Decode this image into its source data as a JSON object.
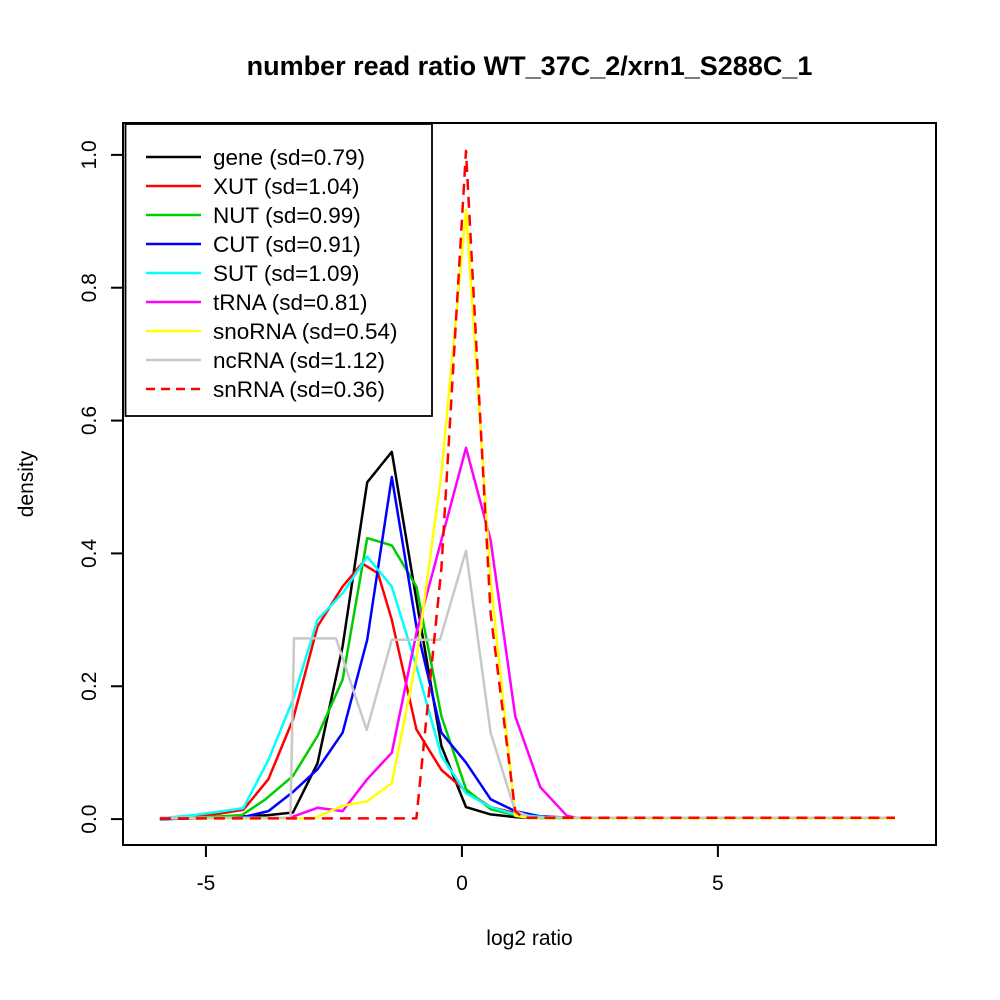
{
  "chart_data": {
    "type": "line",
    "title": "number read ratio WT_37C_2/xrn1_S288C_1",
    "xlabel": "log2 ratio",
    "ylabel": "density",
    "xlim": [
      -6.62,
      9.26
    ],
    "ylim": [
      -0.039,
      1.048
    ],
    "x_ticks": [
      {
        "value": -5,
        "label": "-5"
      },
      {
        "value": 0,
        "label": "0"
      },
      {
        "value": 5,
        "label": "5"
      }
    ],
    "y_ticks": [
      {
        "value": 0.0,
        "label": "0.0"
      },
      {
        "value": 0.2,
        "label": "0.2"
      },
      {
        "value": 0.4,
        "label": "0.4"
      },
      {
        "value": 0.6,
        "label": "0.6"
      },
      {
        "value": 0.8,
        "label": "0.8"
      },
      {
        "value": 1.0,
        "label": "1.0"
      }
    ],
    "grid": false,
    "legend_position": "top-left",
    "axis_color": "#000000",
    "series": [
      {
        "name": "gene",
        "label": "gene (sd=0.79)",
        "color": "#000000",
        "dash": null,
        "points": [
          [
            -5.9,
            0
          ],
          [
            -4.75,
            0.002
          ],
          [
            -4.27,
            0.004
          ],
          [
            -3.78,
            0.006
          ],
          [
            -3.3,
            0.01
          ],
          [
            -2.82,
            0.084
          ],
          [
            -2.33,
            0.26
          ],
          [
            -1.85,
            0.507
          ],
          [
            -1.37,
            0.553
          ],
          [
            -0.89,
            0.33
          ],
          [
            -0.4,
            0.11
          ],
          [
            0.08,
            0.018
          ],
          [
            0.56,
            0.007
          ],
          [
            1.04,
            0.003
          ],
          [
            1.53,
            0.001
          ],
          [
            2.0,
            0.001
          ]
        ]
      },
      {
        "name": "XUT",
        "label": "XUT (sd=1.04)",
        "color": "#ff0000",
        "dash": null,
        "points": [
          [
            -5.9,
            0.001
          ],
          [
            -5.25,
            0.003
          ],
          [
            -4.75,
            0.008
          ],
          [
            -4.27,
            0.014
          ],
          [
            -3.78,
            0.06
          ],
          [
            -3.3,
            0.15
          ],
          [
            -2.82,
            0.29
          ],
          [
            -2.33,
            0.35
          ],
          [
            -1.95,
            0.385
          ],
          [
            -1.64,
            0.37
          ],
          [
            -1.37,
            0.3
          ],
          [
            -0.89,
            0.135
          ],
          [
            -0.4,
            0.074
          ],
          [
            0.08,
            0.042
          ],
          [
            0.56,
            0.018
          ],
          [
            1.04,
            0.009
          ],
          [
            1.53,
            0.004
          ],
          [
            2.5,
            0.001
          ]
        ]
      },
      {
        "name": "NUT",
        "label": "NUT (sd=0.99)",
        "color": "#00cd00",
        "dash": null,
        "points": [
          [
            -5.9,
            0
          ],
          [
            -5.2,
            0.002
          ],
          [
            -4.3,
            0.006
          ],
          [
            -3.85,
            0.029
          ],
          [
            -3.3,
            0.065
          ],
          [
            -2.82,
            0.125
          ],
          [
            -2.33,
            0.21
          ],
          [
            -1.85,
            0.423
          ],
          [
            -1.37,
            0.412
          ],
          [
            -0.89,
            0.35
          ],
          [
            -0.4,
            0.155
          ],
          [
            0.08,
            0.045
          ],
          [
            0.56,
            0.015
          ],
          [
            1.04,
            0.006
          ],
          [
            1.6,
            0.003
          ],
          [
            2.76,
            0.001
          ]
        ]
      },
      {
        "name": "CUT",
        "label": "CUT (sd=0.91)",
        "color": "#0000ff",
        "dash": null,
        "points": [
          [
            -5.9,
            0
          ],
          [
            -4.5,
            0.002
          ],
          [
            -4.27,
            0.003
          ],
          [
            -3.78,
            0.012
          ],
          [
            -3.3,
            0.041
          ],
          [
            -2.82,
            0.075
          ],
          [
            -2.33,
            0.13
          ],
          [
            -1.85,
            0.27
          ],
          [
            -1.37,
            0.515
          ],
          [
            -0.89,
            0.29
          ],
          [
            -0.4,
            0.13
          ],
          [
            0.08,
            0.085
          ],
          [
            0.56,
            0.03
          ],
          [
            1.04,
            0.012
          ],
          [
            1.53,
            0.004
          ],
          [
            2.25,
            0.001
          ]
        ]
      },
      {
        "name": "SUT",
        "label": "SUT (sd=1.09)",
        "color": "#00ffff",
        "dash": null,
        "points": [
          [
            -5.9,
            0.001
          ],
          [
            -5.25,
            0.006
          ],
          [
            -4.75,
            0.011
          ],
          [
            -4.27,
            0.0165
          ],
          [
            -3.78,
            0.089
          ],
          [
            -3.3,
            0.18
          ],
          [
            -2.82,
            0.3
          ],
          [
            -2.33,
            0.34
          ],
          [
            -1.85,
            0.395
          ],
          [
            -1.37,
            0.35
          ],
          [
            -0.89,
            0.23
          ],
          [
            -0.4,
            0.095
          ],
          [
            0.08,
            0.039
          ],
          [
            0.56,
            0.018
          ],
          [
            1.04,
            0.007
          ],
          [
            1.6,
            0.003
          ],
          [
            3.2,
            0.001
          ]
        ]
      },
      {
        "name": "tRNA",
        "label": "tRNA (sd=0.81)",
        "color": "#ff00ff",
        "dash": null,
        "points": [
          [
            -3.4,
            0.001
          ],
          [
            -2.82,
            0.017
          ],
          [
            -2.33,
            0.012
          ],
          [
            -1.85,
            0.06
          ],
          [
            -1.37,
            0.1
          ],
          [
            -0.89,
            0.28
          ],
          [
            -0.4,
            0.42
          ],
          [
            0.08,
            0.559
          ],
          [
            0.56,
            0.42
          ],
          [
            1.04,
            0.155
          ],
          [
            1.53,
            0.048
          ],
          [
            2.05,
            0.005
          ],
          [
            2.3,
            0.001
          ]
        ]
      },
      {
        "name": "snoRNA",
        "label": "snoRNA (sd=0.54)",
        "color": "#ffff00",
        "dash": null,
        "points": [
          [
            -5.9,
            0.001
          ],
          [
            -2.9,
            0.001
          ],
          [
            -2.33,
            0.02
          ],
          [
            -1.85,
            0.027
          ],
          [
            -1.37,
            0.054
          ],
          [
            -0.89,
            0.24
          ],
          [
            -0.4,
            0.52
          ],
          [
            0.08,
            0.917
          ],
          [
            0.56,
            0.36
          ],
          [
            1.04,
            0.005
          ],
          [
            1.4,
            0.001
          ],
          [
            8.46,
            0.001
          ]
        ]
      },
      {
        "name": "ncRNA",
        "label": "ncRNA (sd=1.12)",
        "color": "#c8c8c8",
        "dash": null,
        "points": [
          [
            -5.9,
            0.002
          ],
          [
            -3.35,
            0.002
          ],
          [
            -3.28,
            0.272
          ],
          [
            -2.46,
            0.272
          ],
          [
            -1.86,
            0.134
          ],
          [
            -1.37,
            0.27
          ],
          [
            -0.43,
            0.27
          ],
          [
            0.08,
            0.404
          ],
          [
            0.56,
            0.13
          ],
          [
            1.04,
            0.012
          ],
          [
            1.4,
            0.002
          ],
          [
            8.46,
            0.002
          ]
        ]
      },
      {
        "name": "snRNA",
        "label": "snRNA (sd=0.36)",
        "color": "#ff0000",
        "dash": "11 7",
        "points": [
          [
            -5.9,
            0.001
          ],
          [
            -0.89,
            0.001
          ],
          [
            -0.4,
            0.378
          ],
          [
            0.08,
            1.006
          ],
          [
            0.56,
            0.31
          ],
          [
            1.04,
            0.012
          ],
          [
            1.2,
            0.002
          ],
          [
            8.46,
            0.002
          ]
        ]
      }
    ]
  }
}
